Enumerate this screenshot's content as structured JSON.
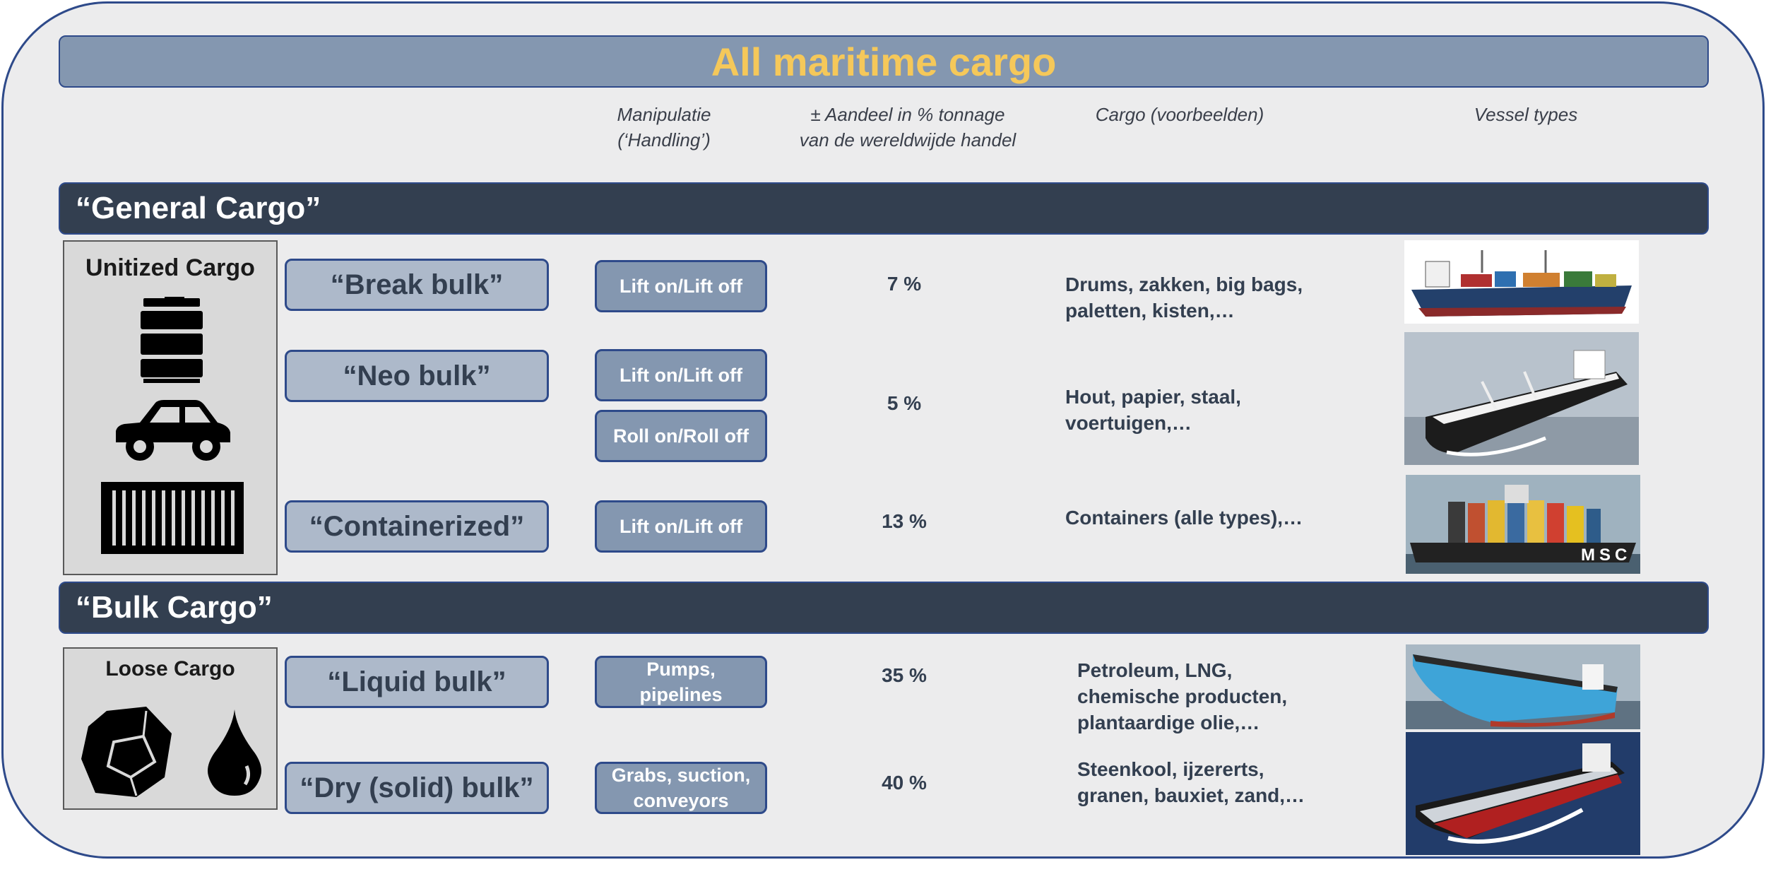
{
  "title": "All maritime cargo",
  "columns": {
    "handling": "Manipulatie\n(‘Handling’)",
    "share": "± Aandeel in % tonnage\nvan de wereldwijde handel",
    "cargo": "Cargo (voorbeelden)",
    "vessels": "Vessel types"
  },
  "sections": {
    "general": {
      "label": "“General Cargo”",
      "icon_box": {
        "title": "Unitized Cargo",
        "icons": [
          "barrel-icon",
          "car-icon",
          "container-icon"
        ]
      },
      "rows": [
        {
          "category": "“Break bulk”",
          "handling": [
            "Lift on/Lift off"
          ],
          "share": "7 %",
          "cargo": "Drums, zakken, big bags,\npaletten, kisten,…",
          "vessel": "general-cargo-ship-image"
        },
        {
          "category": "“Neo bulk”",
          "handling": [
            "Lift on/Lift off",
            "Roll on/Roll off"
          ],
          "share": "5 %",
          "cargo": "Hout, papier, staal,\nvoertuigen,…",
          "vessel": "bulk-carrier-ship-image"
        },
        {
          "category": "“Containerized”",
          "handling": [
            "Lift on/Lift off"
          ],
          "share": "13 %",
          "cargo": "Containers (alle types),…",
          "vessel": "container-ship-image",
          "vessel_text": "MSC"
        }
      ]
    },
    "bulk": {
      "label": "“Bulk Cargo”",
      "icon_box": {
        "title": "Loose Cargo",
        "icons": [
          "rock-icon",
          "drop-icon"
        ]
      },
      "rows": [
        {
          "category": "“Liquid bulk”",
          "handling": [
            "Pumps,\npipelines"
          ],
          "share": "35 %",
          "cargo": "Petroleum, LNG,\nchemische producten,\nplantaardige olie,…",
          "vessel": "tanker-ship-image"
        },
        {
          "category": "“Dry (solid) bulk”",
          "handling": [
            "Grabs, suction,\nconveyors"
          ],
          "share": "40 %",
          "cargo": "Steenkool, ijzererts,\ngranen, bauxiet, zand,…",
          "vessel": "dry-bulk-carrier-image"
        }
      ]
    }
  },
  "colors": {
    "frame_border": "#2e4a8a",
    "title_bar": "#8497b0",
    "title_text": "#f5c85a",
    "section_bar": "#333f50",
    "category_box": "#adb9ca",
    "handling_box": "#8497b0"
  }
}
